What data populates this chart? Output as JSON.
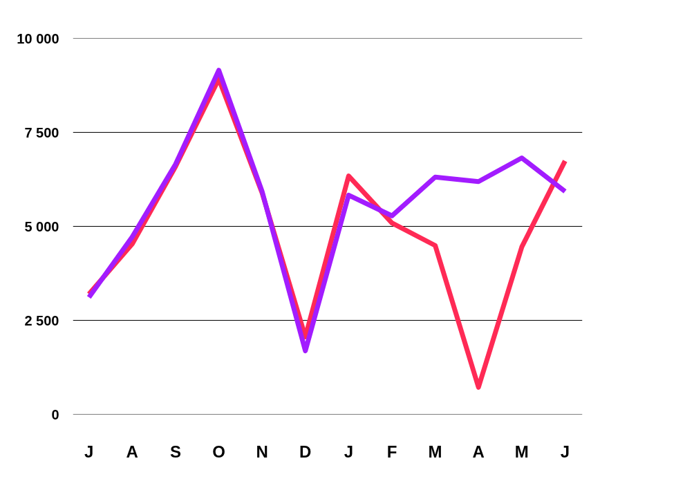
{
  "chart_data": {
    "type": "line",
    "categories": [
      "J",
      "A",
      "S",
      "O",
      "N",
      "D",
      "J",
      "F",
      "M",
      "A",
      "M",
      "J"
    ],
    "series": [
      {
        "color": "#ff2a55",
        "values": [
          3200,
          4530,
          6590,
          8920,
          5890,
          2060,
          6340,
          5090,
          4490,
          720,
          4450,
          6740
        ]
      },
      {
        "color": "#a21cff",
        "values": [
          3110,
          4720,
          6650,
          9150,
          5930,
          1690,
          5830,
          5280,
          6310,
          6190,
          6820,
          5930
        ]
      }
    ],
    "ylim": [
      0,
      10000
    ],
    "yticks": [
      0,
      {
        "value": 2500,
        "label": "2 500"
      },
      {
        "value": 5000,
        "label": "5 000"
      },
      {
        "value": 7500,
        "label": "7 500"
      },
      {
        "value": 10000,
        "label": "10 000"
      }
    ],
    "grid": "y",
    "marker": "none",
    "line_style": "solid"
  }
}
